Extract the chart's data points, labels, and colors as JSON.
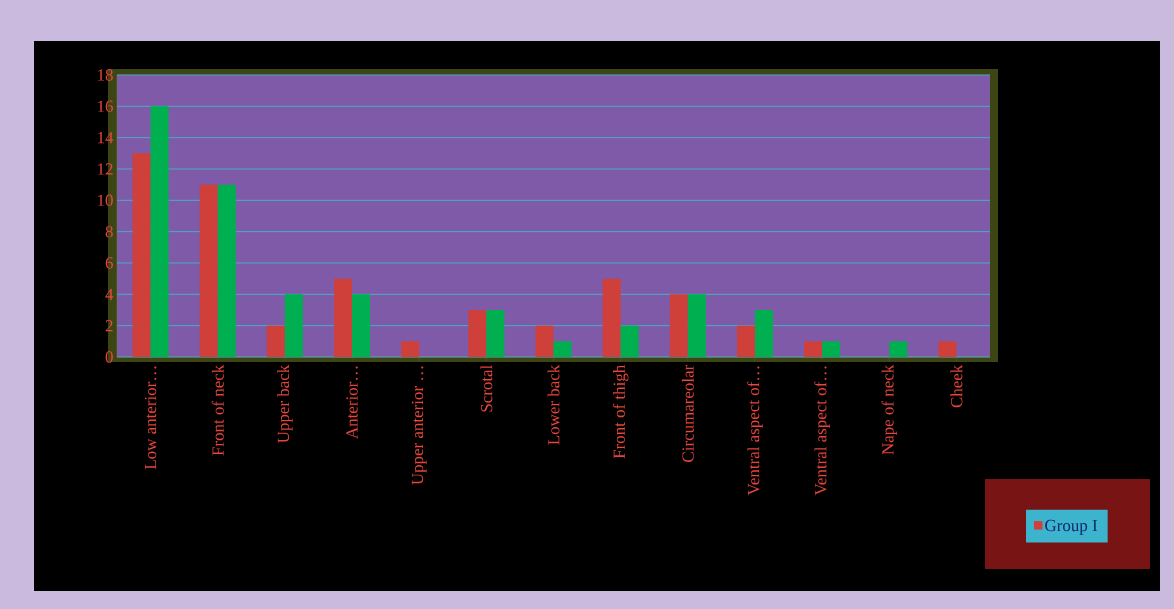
{
  "chart_data": {
    "type": "bar",
    "categories": [
      "Low anterior…",
      "Front of neck",
      "Upper back",
      "Anterior…",
      "Upper anterior …",
      "Scrotal",
      "Lower back",
      "Front of thigh",
      "Circumareolar",
      "Ventral aspect of…",
      "Ventral aspect of…",
      "Nape of neck",
      "Cheek"
    ],
    "series": [
      {
        "name": "Group I",
        "color": "#d0403a",
        "values": [
          13,
          11,
          2,
          5,
          1,
          3,
          2,
          5,
          4,
          2,
          1,
          0,
          1
        ]
      },
      {
        "color": "#00b050",
        "values": [
          16,
          11,
          4,
          4,
          0,
          3,
          1,
          2,
          4,
          3,
          1,
          1,
          0
        ]
      }
    ],
    "ylim": [
      0,
      18
    ],
    "yticks": [
      0,
      2,
      4,
      6,
      8,
      10,
      12,
      14,
      16,
      18
    ],
    "grid": "y",
    "legend": "bottom right"
  }
}
